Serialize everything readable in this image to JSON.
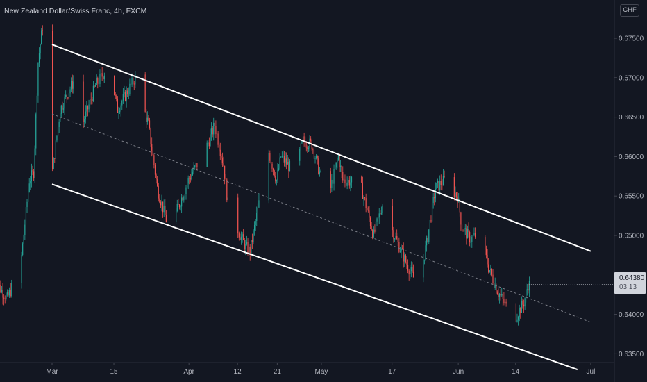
{
  "header": {
    "title": "New Zealand Dollar/Swiss Franc, 4h, FXCM",
    "currency_button": "CHF"
  },
  "last_price": {
    "value": "0.64380",
    "countdown": "03:13"
  },
  "chart_data": {
    "type": "candlestick",
    "title": "New Zealand Dollar/Swiss Franc, 4h, FXCM",
    "symbol": "NZDCHF",
    "timeframe": "4h",
    "source": "FXCM",
    "y_ticks": [
      "0.67500",
      "0.67000",
      "0.66500",
      "0.66000",
      "0.65500",
      "0.65000",
      "0.64500",
      "0.64000",
      "0.63500"
    ],
    "x_ticks": [
      "Mar",
      "15",
      "Apr",
      "12",
      "21",
      "May",
      "17",
      "Jun",
      "14",
      "Jul"
    ],
    "ylim": [
      0.6317,
      0.6788
    ],
    "last_price": 0.6438,
    "colors": {
      "up": "#26a69a",
      "down": "#ef5350",
      "background": "#131722",
      "lines": "#ffffff"
    },
    "path_points": [
      [
        "Feb 16",
        0.6445
      ],
      [
        "Feb 19",
        0.642
      ],
      [
        "Feb 22",
        0.646
      ],
      [
        "Feb 24",
        0.657
      ],
      [
        "Feb 25",
        0.658
      ],
      [
        "Feb 26",
        0.672
      ],
      [
        "Feb 27",
        0.6765
      ],
      [
        "Feb 28",
        0.663
      ],
      [
        "Mar 1",
        0.657
      ],
      [
        "Mar 3",
        0.666
      ],
      [
        "Mar 6",
        0.6695
      ],
      [
        "Mar 8",
        0.664
      ],
      [
        "Mar 11",
        0.669
      ],
      [
        "Mar 14",
        0.6715
      ],
      [
        "Mar 16",
        0.666
      ],
      [
        "Mar 20",
        0.67
      ],
      [
        "Mar 23",
        0.664
      ],
      [
        "Mar 25",
        0.656
      ],
      [
        "Mar 27",
        0.652
      ],
      [
        "Mar 29",
        0.6525
      ],
      [
        "Apr 1",
        0.657
      ],
      [
        "Apr 5",
        0.661
      ],
      [
        "Apr 7",
        0.664
      ],
      [
        "Apr 9",
        0.659
      ],
      [
        "Apr 10",
        0.654
      ],
      [
        "Apr 12",
        0.651
      ],
      [
        "Apr 14",
        0.6485
      ],
      [
        "Apr 15",
        0.648
      ],
      [
        "Apr 17",
        0.654
      ],
      [
        "Apr 19",
        0.661
      ],
      [
        "Apr 21",
        0.657
      ],
      [
        "Apr 22",
        0.66
      ],
      [
        "Apr 25",
        0.658
      ],
      [
        "Apr 27",
        0.662
      ],
      [
        "Apr 29",
        0.6615
      ],
      [
        "May 1",
        0.6575
      ],
      [
        "May 3",
        0.6555
      ],
      [
        "May 5",
        0.66
      ],
      [
        "May 6",
        0.657
      ],
      [
        "May 10",
        0.6565
      ],
      [
        "May 13",
        0.65
      ],
      [
        "May 15",
        0.654
      ],
      [
        "May 17",
        0.651
      ],
      [
        "May 20",
        0.647
      ],
      [
        "May 23",
        0.6435
      ],
      [
        "May 25",
        0.649
      ],
      [
        "May 27",
        0.656
      ],
      [
        "May 29",
        0.657
      ],
      [
        "Jun 1",
        0.655
      ],
      [
        "Jun 2",
        0.651
      ],
      [
        "Jun 4",
        0.6495
      ],
      [
        "Jun 6",
        0.6505
      ],
      [
        "Jun 8",
        0.646
      ],
      [
        "Jun 10",
        0.643
      ],
      [
        "Jun 12",
        0.641
      ],
      [
        "Jun 14",
        0.6395
      ],
      [
        "Jun 16",
        0.6415
      ],
      [
        "Jun 17",
        0.6438
      ]
    ],
    "channel": {
      "upper": [
        [
          "Mar 1",
          0.6742
        ],
        [
          "Jul 1",
          0.648
        ]
      ],
      "lower": [
        [
          "Mar 1",
          0.6565
        ],
        [
          "Jun 28",
          0.633
        ]
      ],
      "median_dashed": [
        [
          "Mar 1",
          0.6654
        ],
        [
          "Jul 1",
          0.639
        ]
      ]
    }
  }
}
